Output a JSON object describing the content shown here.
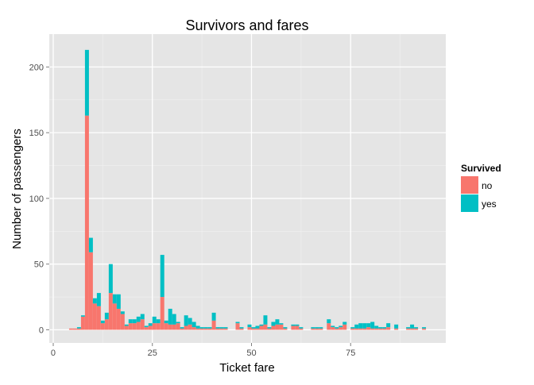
{
  "chart_data": {
    "type": "bar",
    "subtype": "stacked-histogram",
    "title": "Survivors and fares",
    "xlabel": "Ticket fare",
    "ylabel": "Number of passengers",
    "xlim": [
      -1,
      99
    ],
    "ylim": [
      -10,
      225
    ],
    "x_ticks": [
      0,
      25,
      50,
      75
    ],
    "y_ticks": [
      0,
      50,
      100,
      150,
      200
    ],
    "bin_width": 1,
    "grid": true,
    "legend": {
      "title": "Survived",
      "position": "right",
      "entries": [
        {
          "label": "no",
          "color": "#F8766D"
        },
        {
          "label": "yes",
          "color": "#00BFC4"
        }
      ]
    },
    "bins": [
      4,
      5,
      6,
      7,
      8,
      9,
      10,
      11,
      12,
      13,
      14,
      15,
      16,
      17,
      18,
      19,
      20,
      21,
      22,
      23,
      24,
      25,
      26,
      27,
      28,
      29,
      30,
      31,
      32,
      33,
      34,
      35,
      36,
      37,
      38,
      39,
      40,
      41,
      42,
      43,
      46,
      47,
      49,
      50,
      51,
      52,
      53,
      54,
      55,
      56,
      57,
      58,
      60,
      61,
      62,
      65,
      66,
      67,
      69,
      70,
      71,
      72,
      73,
      75,
      76,
      77,
      78,
      79,
      80,
      81,
      82,
      83,
      84,
      86,
      89,
      90,
      91,
      93
    ],
    "series": [
      {
        "name": "no",
        "values": [
          1,
          1,
          1,
          10,
          163,
          59,
          20,
          18,
          5,
          8,
          28,
          20,
          16,
          12,
          3,
          5,
          5,
          6,
          8,
          2,
          3,
          5,
          5,
          25,
          5,
          4,
          4,
          5,
          1,
          3,
          4,
          2,
          1,
          1,
          1,
          1,
          7,
          1,
          1,
          1,
          5,
          1,
          2,
          1,
          1,
          3,
          4,
          1,
          3,
          4,
          4,
          1,
          3,
          3,
          1,
          1,
          1,
          1,
          5,
          2,
          1,
          2,
          4,
          1,
          1,
          1,
          1,
          2,
          1,
          1,
          1,
          1,
          2,
          1,
          1,
          1,
          1,
          1
        ]
      },
      {
        "name": "yes",
        "values": [
          0,
          0,
          1,
          1,
          50,
          11,
          4,
          10,
          2,
          5,
          22,
          7,
          11,
          2,
          1,
          3,
          3,
          4,
          4,
          1,
          2,
          5,
          3,
          32,
          2,
          12,
          8,
          1,
          1,
          8,
          5,
          4,
          2,
          1,
          1,
          1,
          6,
          1,
          1,
          1,
          1,
          1,
          2,
          1,
          2,
          1,
          7,
          1,
          3,
          4,
          1,
          1,
          1,
          1,
          1,
          1,
          1,
          1,
          3,
          1,
          1,
          1,
          2,
          1,
          3,
          4,
          4,
          3,
          5,
          2,
          1,
          1,
          3,
          3,
          1,
          3,
          1,
          1
        ]
      }
    ]
  }
}
